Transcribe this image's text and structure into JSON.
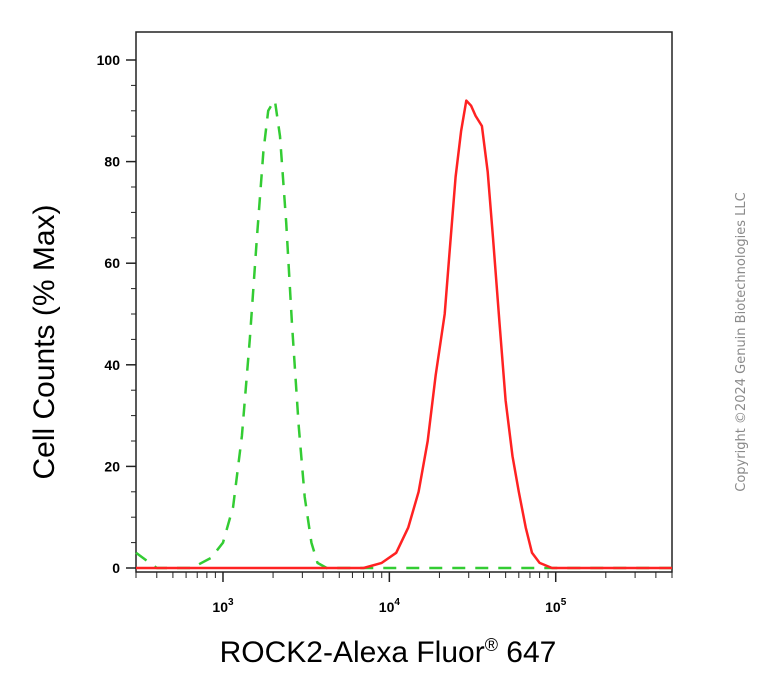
{
  "chart_data": {
    "type": "line",
    "title": "",
    "xlabel": "ROCK2-Alexa Fluor",
    "xlabel_superscript": "®",
    "xlabel_suffix": " 647",
    "ylabel": "Cell Counts (% Max)",
    "x_scale": "log",
    "xlim": [
      300,
      500000
    ],
    "ylim": [
      0,
      100
    ],
    "y_ticks": [
      0,
      20,
      40,
      60,
      80,
      100
    ],
    "x_ticks": [
      {
        "value": 1000,
        "base": "10",
        "exp": "3"
      },
      {
        "value": 10000,
        "base": "10",
        "exp": "4"
      },
      {
        "value": 100000,
        "base": "10",
        "exp": "5"
      }
    ],
    "grid": false,
    "legend": "none",
    "series": [
      {
        "color": "#33cc33",
        "style": "dashed",
        "points": [
          [
            300,
            3
          ],
          [
            400,
            0
          ],
          [
            650,
            0
          ],
          [
            850,
            2
          ],
          [
            1000,
            5
          ],
          [
            1150,
            12
          ],
          [
            1300,
            26
          ],
          [
            1450,
            45
          ],
          [
            1600,
            65
          ],
          [
            1750,
            82
          ],
          [
            1870,
            90
          ],
          [
            1950,
            91
          ],
          [
            2050,
            92
          ],
          [
            2200,
            85
          ],
          [
            2400,
            68
          ],
          [
            2600,
            48
          ],
          [
            2850,
            28
          ],
          [
            3100,
            14
          ],
          [
            3400,
            5
          ],
          [
            3700,
            1
          ],
          [
            4200,
            0
          ],
          [
            500000,
            0
          ]
        ]
      },
      {
        "color": "#ff2222",
        "style": "solid",
        "points": [
          [
            300,
            0
          ],
          [
            7000,
            0
          ],
          [
            9000,
            1
          ],
          [
            11000,
            3
          ],
          [
            13000,
            8
          ],
          [
            15000,
            15
          ],
          [
            17000,
            25
          ],
          [
            19000,
            38
          ],
          [
            21500,
            50
          ],
          [
            23000,
            62
          ],
          [
            25000,
            77
          ],
          [
            27000,
            86
          ],
          [
            29000,
            92
          ],
          [
            31000,
            91
          ],
          [
            33000,
            89
          ],
          [
            36000,
            87
          ],
          [
            39000,
            78
          ],
          [
            42000,
            65
          ],
          [
            46000,
            48
          ],
          [
            50000,
            33
          ],
          [
            55000,
            22
          ],
          [
            60000,
            15
          ],
          [
            66000,
            8
          ],
          [
            72000,
            3
          ],
          [
            80000,
            1
          ],
          [
            95000,
            0
          ],
          [
            500000,
            0
          ]
        ]
      }
    ]
  },
  "watermark": "Copyright ©2024 Genuin Biotechnologies LLC"
}
